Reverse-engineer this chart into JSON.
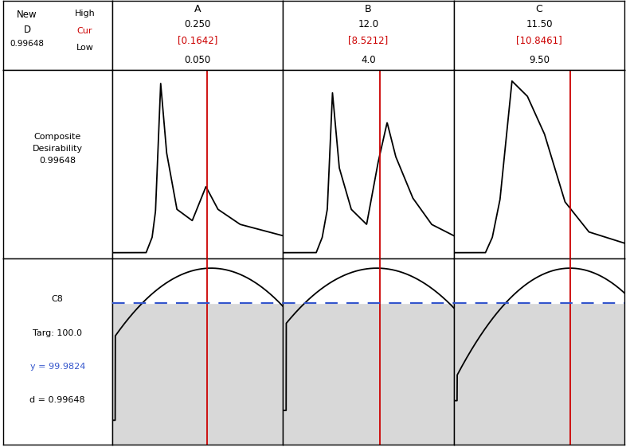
{
  "header_left": {
    "line1": "New",
    "line2": "D",
    "line3": "0.99648",
    "right_high": "High",
    "right_cur": "Cur",
    "right_low": "Low"
  },
  "columns": [
    {
      "name": "A",
      "high": "0.250",
      "cur": "[0.1642]",
      "low": "0.050",
      "vline_rel": 0.558
    },
    {
      "name": "B",
      "high": "12.0",
      "cur": "[8.5212]",
      "low": "4.0",
      "vline_rel": 0.568
    },
    {
      "name": "C",
      "high": "11.50",
      "cur": "[10.8461]",
      "low": "9.50",
      "vline_rel": 0.68
    }
  ],
  "label_top": "Composite\nDesirability\n0.99648",
  "label_bot_lines": [
    "C8",
    "Targ: 100.0",
    "y = 99.9824",
    "d = 0.99648"
  ],
  "colors": {
    "background": "#ffffff",
    "red_line": "#cc0000",
    "blue_dashed": "#3355cc",
    "cur_text": "#cc0000",
    "y_text": "#3355cc",
    "plot_bg_top": "#ffffff",
    "plot_bg_bottom": "#d8d8d8",
    "curve_color": "#000000",
    "white": "#ffffff"
  }
}
